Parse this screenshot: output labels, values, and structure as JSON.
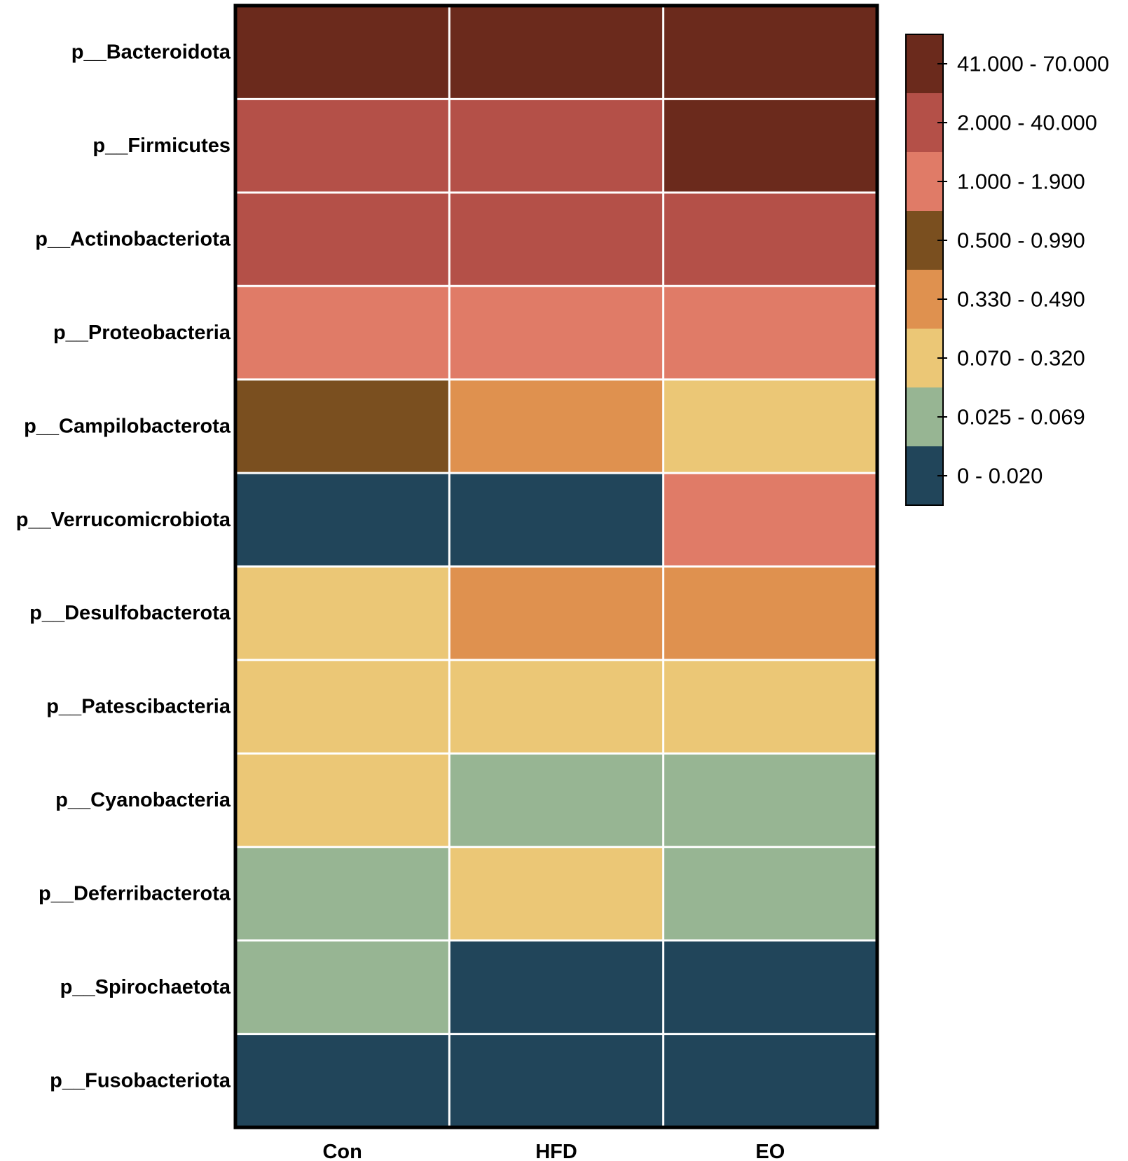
{
  "chart_data": {
    "type": "heatmap",
    "title": "",
    "xlabel": "",
    "ylabel": "",
    "columns": [
      "Con",
      "HFD",
      "EO"
    ],
    "rows": [
      "p__Bacteroidota",
      "p__Firmicutes",
      "p__Actinobacteriota",
      "p__Proteobacteria",
      "p__Campilobacterota",
      "p__Verrucomicrobiota",
      "p__Desulfobacterota",
      "p__Patescibacteria",
      "p__Cyanobacteria",
      "p__Deferribacterota",
      "p__Spirochaetota",
      "p__Fusobacteriota"
    ],
    "cell_classes": [
      [
        7,
        7,
        7
      ],
      [
        6,
        6,
        7
      ],
      [
        6,
        6,
        6
      ],
      [
        5,
        5,
        5
      ],
      [
        4,
        3,
        2
      ],
      [
        0,
        0,
        5
      ],
      [
        2,
        3,
        3
      ],
      [
        2,
        2,
        2
      ],
      [
        2,
        1,
        1
      ],
      [
        1,
        2,
        1
      ],
      [
        1,
        0,
        0
      ],
      [
        0,
        0,
        0
      ]
    ],
    "legend": {
      "placement": "right",
      "bins": [
        {
          "label": "0 - 0.020",
          "min": 0,
          "max": 0.02,
          "color": "#21455a"
        },
        {
          "label": "0.025 - 0.069",
          "min": 0.025,
          "max": 0.069,
          "color": "#97b593"
        },
        {
          "label": "0.070 - 0.320",
          "min": 0.07,
          "max": 0.32,
          "color": "#ebc776"
        },
        {
          "label": "0.330 - 0.490",
          "min": 0.33,
          "max": 0.49,
          "color": "#df914f"
        },
        {
          "label": "0.500 - 0.990",
          "min": 0.5,
          "max": 0.99,
          "color": "#7a4f1f"
        },
        {
          "label": "1.000 - 1.900",
          "min": 1.0,
          "max": 1.9,
          "color": "#e07b67"
        },
        {
          "label": "2.000 - 40.000",
          "min": 2.0,
          "max": 40.0,
          "color": "#b45048"
        },
        {
          "label": "41.000 - 70.000",
          "min": 41.0,
          "max": 70.0,
          "color": "#6b2a1c"
        }
      ]
    },
    "grid": true
  }
}
